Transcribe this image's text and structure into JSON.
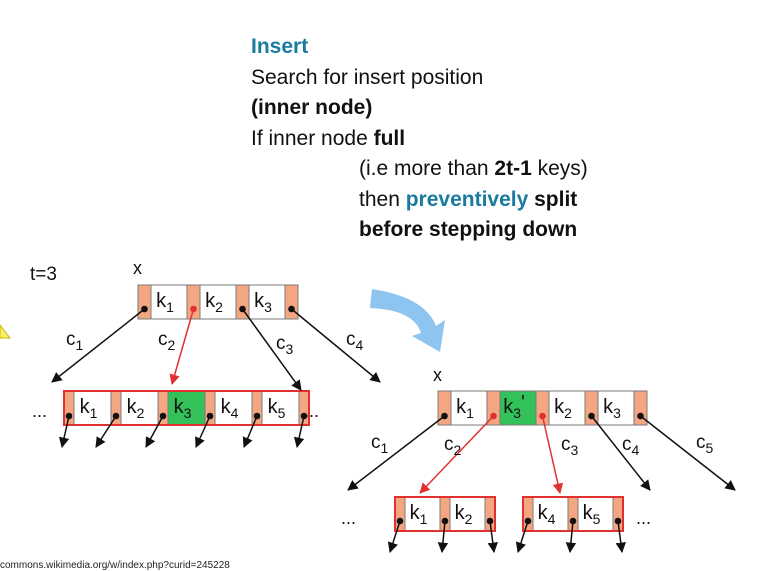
{
  "heading": {
    "title": "Insert",
    "line1": "Search for insert position",
    "line2": "(inner node)",
    "line3_prefix": "If inner node ",
    "line3_bold": "full",
    "line4_prefix": "(i.e more than ",
    "line4_bold": "2t-1",
    "line4_suffix": " keys)",
    "line5_prefix": "then ",
    "line5_accent": "preventively",
    "line5_bold": " split",
    "line6": "before stepping down"
  },
  "diagram": {
    "t_label": "t=3",
    "before": {
      "node_label": "x",
      "root_keys": [
        {
          "base": "k",
          "sub": "1"
        },
        {
          "base": "k",
          "sub": "2"
        },
        {
          "base": "k",
          "sub": "3"
        }
      ],
      "child_pointer_labels": [
        {
          "base": "c",
          "sub": "1"
        },
        {
          "base": "c",
          "sub": "2"
        },
        {
          "base": "c",
          "sub": "3"
        },
        {
          "base": "c",
          "sub": "4"
        }
      ],
      "child_keys": [
        {
          "base": "k",
          "sub": "1"
        },
        {
          "base": "k",
          "sub": "2"
        },
        {
          "base": "k",
          "sub": "3"
        },
        {
          "base": "k",
          "sub": "4"
        },
        {
          "base": "k",
          "sub": "5"
        }
      ],
      "ellipsis_left": "...",
      "ellipsis_right": "..."
    },
    "after": {
      "node_label": "x",
      "root_keys": [
        {
          "base": "k",
          "sub": "1"
        },
        {
          "base": "k",
          "sub": "3",
          "prime": "'"
        },
        {
          "base": "k",
          "sub": "2"
        },
        {
          "base": "k",
          "sub": "3"
        }
      ],
      "child_pointer_labels": [
        {
          "base": "c",
          "sub": "1"
        },
        {
          "base": "c",
          "sub": "2"
        },
        {
          "base": "c",
          "sub": "3"
        },
        {
          "base": "c",
          "sub": "4"
        },
        {
          "base": "c",
          "sub": "5"
        }
      ],
      "left_child_keys": [
        {
          "base": "k",
          "sub": "1"
        },
        {
          "base": "k",
          "sub": "2"
        }
      ],
      "right_child_keys": [
        {
          "base": "k",
          "sub": "4"
        },
        {
          "base": "k",
          "sub": "5"
        }
      ],
      "ellipsis_left": "...",
      "ellipsis_right": "..."
    },
    "colors": {
      "pointer_cell": "#f4a582",
      "highlight_key": "#33c15a",
      "red_border": "#e03030",
      "transition_arrow": "#8ec5f0"
    }
  },
  "source_note": "commons.wikimedia.org/w/index.php?curid=245228"
}
